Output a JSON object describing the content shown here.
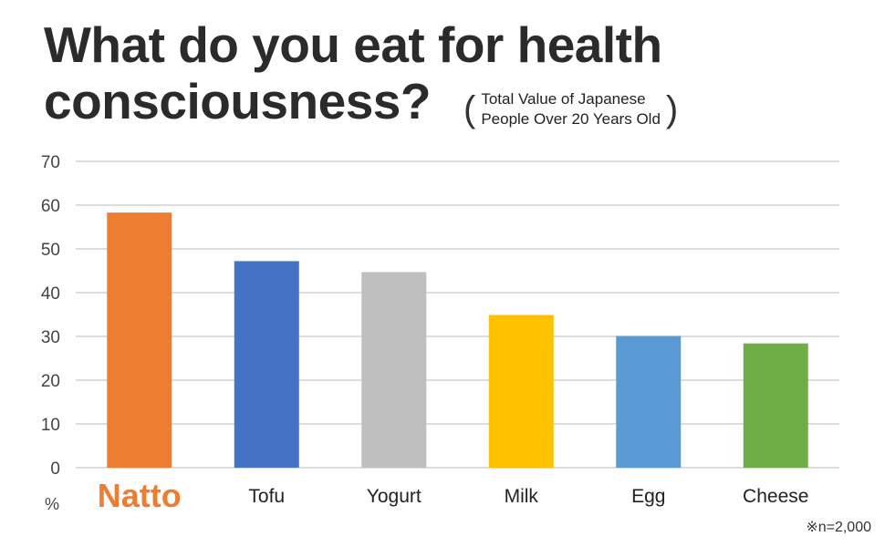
{
  "title_line1": "What do you eat for health",
  "title_line2": "consciousness?",
  "subtitle_line1": "Total Value of Japanese",
  "subtitle_line2": "People Over 20 Years Old",
  "chart_data": {
    "type": "bar",
    "categories": [
      "Natto",
      "Tofu",
      "Yogurt",
      "Milk",
      "Egg",
      "Cheese"
    ],
    "values": [
      58.3,
      47.2,
      44.7,
      34.9,
      30.1,
      28.4
    ],
    "colors": [
      "#ed7d31",
      "#4472c4",
      "#bfbfbf",
      "#ffc000",
      "#5b9bd5",
      "#70ad47"
    ],
    "highlight_category": "Natto",
    "highlight_color": "#ed7d31",
    "ylim": [
      0,
      70
    ],
    "yticks": [
      0,
      10,
      20,
      30,
      40,
      50,
      60,
      70
    ],
    "ylabel": "%",
    "grid": true,
    "note": "※n=2,000"
  }
}
